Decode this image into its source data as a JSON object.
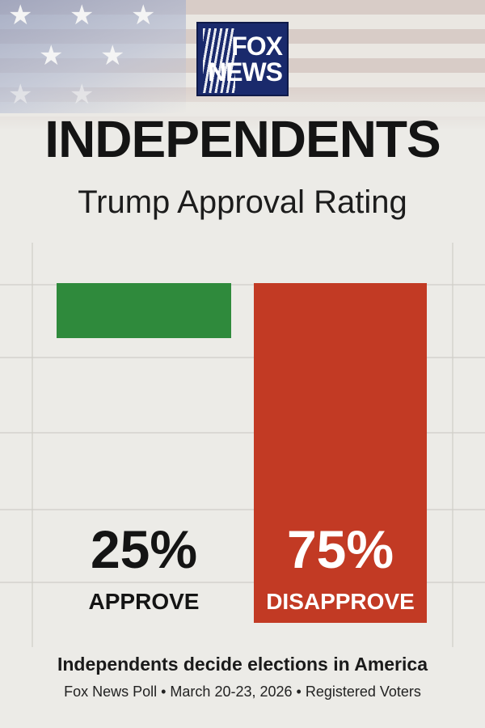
{
  "brand": {
    "logo_line1": "FOX",
    "logo_line2": "NEWS"
  },
  "colors": {
    "approve": "#2f8a3c",
    "disapprove": "#c23a24",
    "text": "#141414",
    "white": "#ffffff"
  },
  "chart_data": {
    "type": "bar",
    "title": "INDEPENDENTS",
    "subtitle": "Trump Approval Rating",
    "categories": [
      "APPROVE",
      "DISAPPROVE"
    ],
    "values": [
      25,
      75
    ],
    "value_labels": [
      "25%",
      "75%"
    ],
    "ylim": [
      0,
      100
    ],
    "grid": true
  },
  "footer": {
    "headline": "Independents decide elections in America",
    "source": "Fox News Poll • March 20-23, 2026 • Registered Voters"
  }
}
